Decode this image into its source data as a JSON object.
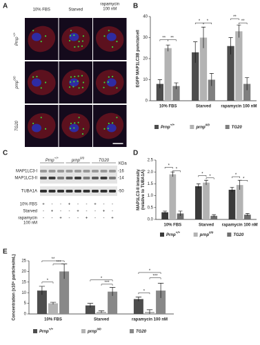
{
  "panels": {
    "A": {
      "label": "A",
      "columns": [
        [
          "10% FBS"
        ],
        [
          "Starved"
        ],
        [
          "rapamycin",
          "100 nM"
        ]
      ],
      "rows": [
        {
          "text": "Prnp",
          "sup": "+/+"
        },
        {
          "text": "prnp",
          "sup": "0/0"
        },
        {
          "text": "TG20"
        }
      ]
    },
    "C": {
      "label": "C",
      "groups": [
        {
          "text": "Prnp",
          "sup": "+/+"
        },
        {
          "text": "prnp",
          "sup": "0/0"
        },
        {
          "text": "TG20"
        }
      ],
      "unit": "KDa",
      "bands": [
        {
          "name": "MAP1LC3-I",
          "marker": "-16"
        },
        {
          "name": "MAP1LC3-II",
          "marker": "-14"
        },
        {
          "name": "TUBA1A",
          "marker": "-50"
        }
      ],
      "treatments": [
        {
          "lines": [
            "10% FBS"
          ],
          "signs": [
            "+",
            "-",
            "-",
            "+",
            "-",
            "-",
            "+",
            "-",
            "-"
          ]
        },
        {
          "lines": [
            "Starved"
          ],
          "signs": [
            "-",
            "+",
            "-",
            "-",
            "+",
            "-",
            "-",
            "+",
            "-"
          ]
        },
        {
          "lines": [
            "rapamycin",
            "100 nM"
          ],
          "signs": [
            "-",
            "-",
            "+",
            "-",
            "-",
            "+",
            "-",
            "-",
            "+"
          ]
        }
      ]
    }
  },
  "chart_data": [
    {
      "type": "bar",
      "panel": "B",
      "ylabel": [
        "EGFP MAP1LC3B puncta/cell"
      ],
      "categories": [
        "10% FBS",
        "Starved",
        "rapamycin 100 nM"
      ],
      "series": [
        {
          "name": "Prnp",
          "name_sup": "+/+",
          "color": "#4d4d4d",
          "values": [
            8,
            23,
            26
          ],
          "errors": [
            2,
            5,
            4
          ]
        },
        {
          "name": "prnp",
          "name_sup": "0/0",
          "color": "#b3b3b3",
          "values": [
            25,
            30,
            33
          ],
          "errors": [
            1.5,
            5,
            3
          ]
        },
        {
          "name": "TG20",
          "color": "#7f7f7f",
          "values": [
            7,
            10,
            8
          ],
          "errors": [
            1.5,
            3,
            3
          ]
        }
      ],
      "ylim": [
        0,
        40
      ],
      "yticks": [
        0,
        10,
        20,
        30,
        40
      ],
      "annotations": [
        {
          "text": "**",
          "category": 0,
          "from": 0,
          "to": 1,
          "y": 29
        },
        {
          "text": "**",
          "category": 0,
          "from": 1,
          "to": 2,
          "y": 29
        },
        {
          "text": "*",
          "category": 1,
          "from": 0,
          "to": 1,
          "y": 37
        },
        {
          "text": "*",
          "category": 1,
          "from": 1,
          "to": 2,
          "y": 37
        },
        {
          "text": "**",
          "category": 2,
          "from": 0,
          "to": 1,
          "y": 39
        },
        {
          "text": "**",
          "category": 2,
          "from": 1,
          "to": 2,
          "y": 37
        }
      ]
    },
    {
      "type": "bar",
      "panel": "D",
      "ylabel": [
        "MAP1LC3-II intensity",
        "(relative to TUBA1A)"
      ],
      "categories": [
        "10% FBS",
        "Starved",
        "rapamycin 100 nM"
      ],
      "series": [
        {
          "name": "Prnp",
          "name_sup": "+/+",
          "color": "#3a3a3a",
          "values": [
            0.3,
            1.4,
            1.25
          ],
          "errors": [
            0.05,
            0.1,
            0.1
          ]
        },
        {
          "name": "prnp",
          "name_sup": "0/0",
          "color": "#b3b3b3",
          "values": [
            1.9,
            1.55,
            1.45
          ],
          "errors": [
            0.1,
            0.1,
            0.2
          ]
        },
        {
          "name": "TG20",
          "color": "#6e6e6e",
          "values": [
            0.25,
            0.15,
            0.2
          ],
          "errors": [
            0.1,
            0.05,
            0.05
          ]
        }
      ],
      "ylim": [
        0,
        2.5
      ],
      "yticks": [
        {
          "value": 0,
          "label": "0.0"
        },
        0.5,
        {
          "value": 1,
          "label": "1.0"
        },
        1.5,
        {
          "value": 2,
          "label": "2.0"
        },
        2.5
      ],
      "annotations": [
        {
          "text": "*",
          "category": 0,
          "from": 0,
          "to": 1,
          "y": 2.2
        },
        {
          "text": "*",
          "category": 0,
          "from": 1,
          "to": 2,
          "y": 2.05
        },
        {
          "text": "*",
          "category": 1,
          "from": 0,
          "to": 1,
          "y": 1.85
        },
        {
          "text": "*",
          "category": 1,
          "from": 1,
          "to": 2,
          "y": 1.75
        },
        {
          "text": "*",
          "category": 2,
          "from": 0,
          "to": 1,
          "y": 1.8
        },
        {
          "text": "*",
          "category": 2,
          "from": 1,
          "to": 2,
          "y": 1.65
        }
      ]
    },
    {
      "type": "bar",
      "panel": "E",
      "ylabel": [
        "Concentration (x10⁹ particles/mL)"
      ],
      "categories": [
        "10% FBS",
        "Starved",
        "rapamycin 100 nM"
      ],
      "series": [
        {
          "name": "Prnp",
          "name_sup": "+/+",
          "color": "#4d4d4d",
          "values": [
            11,
            4,
            7
          ],
          "errors": [
            2,
            1,
            1
          ]
        },
        {
          "name": "prnp",
          "name_sup": "0/0",
          "color": "#b3b3b3",
          "values": [
            5,
            1,
            1
          ],
          "errors": [
            0.5,
            0.5,
            1
          ]
        },
        {
          "name": "TG20",
          "color": "#888888",
          "values": [
            20,
            10.5,
            11
          ],
          "errors": [
            3.5,
            2,
            3.5
          ]
        }
      ],
      "ylim": [
        0,
        25
      ],
      "yticks": [
        0,
        5,
        10,
        15,
        20,
        25
      ],
      "annotations": [
        {
          "text": "*",
          "category": 0,
          "from": 0,
          "to": 1,
          "y": 15
        },
        {
          "text": "**",
          "category": 0,
          "from": 0,
          "to": 2,
          "y": 25
        },
        {
          "text": "***",
          "category": 0,
          "from": 1,
          "to": 2,
          "y": 23.5
        },
        {
          "text": "*",
          "category": 1,
          "from": 0,
          "to": 2,
          "y": 16
        },
        {
          "text": "***",
          "category": 1,
          "from": 1,
          "to": 2,
          "y": 14
        },
        {
          "text": "*",
          "category": 2,
          "from": 0,
          "to": 1,
          "y": 10
        },
        {
          "text": "*",
          "category": 2,
          "from": 0,
          "to": 2,
          "y": 19.5
        },
        {
          "text": "***",
          "category": 2,
          "from": 1,
          "to": 2,
          "y": 17
        }
      ]
    }
  ]
}
